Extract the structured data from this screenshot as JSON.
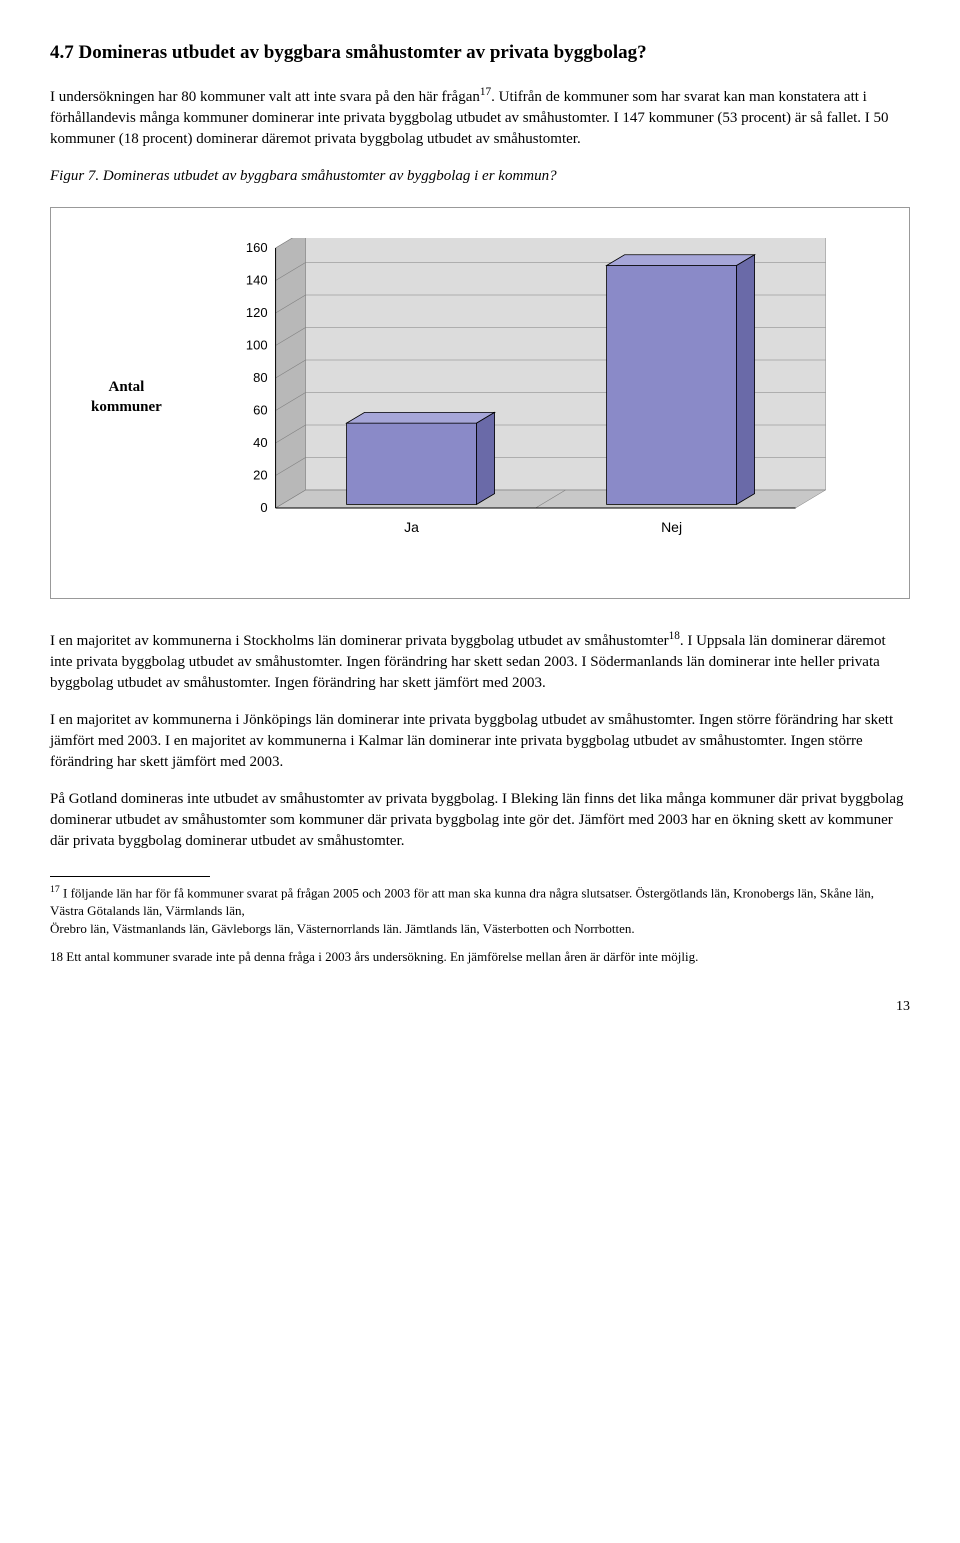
{
  "heading": "4.7 Domineras utbudet av byggbara småhustomter av privata byggbolag?",
  "para1_a": "I undersökningen har 80 kommuner valt att inte svara på den här frågan",
  "para1_sup": "17",
  "para1_b": ". Utifrån de kommuner som har svarat kan man konstatera att i förhållandevis många kommuner dominerar inte privata byggbolag utbudet av småhustomter. I 147 kommuner (53 procent) är så fallet. I 50 kommuner (18 procent) dominerar däremot privata byggbolag utbudet av småhustomter.",
  "figcaption": "Figur 7. Domineras utbudet av byggbara småhustomter av byggbolag i er kommun?",
  "chart": {
    "type": "bar-3d",
    "ylabel_line1": "Antal",
    "ylabel_line2": "kommuner",
    "categories": [
      "Ja",
      "Nej"
    ],
    "values": [
      50,
      147
    ],
    "yticks": [
      0,
      20,
      40,
      60,
      80,
      100,
      120,
      140,
      160
    ],
    "ymax": 160,
    "bar_fill": "#8a8ac8",
    "bar_top": "#a6a6d8",
    "bar_side": "#6a6aa8",
    "floor_fill": "#c8c8c8",
    "backwall_fill": "#dcdcdc",
    "sidewall_fill": "#b8b8b8",
    "grid_color": "#808080",
    "tick_fontsize": 13,
    "label_fontsize": 14
  },
  "para2_a": "I en majoritet av kommunerna i Stockholms län dominerar privata byggbolag utbudet av småhustomter",
  "para2_sup": "18",
  "para2_b": ". I Uppsala län dominerar däremot inte privata byggbolag utbudet av småhustomter. Ingen förändring har skett sedan 2003. I Södermanlands län dominerar inte heller privata byggbolag utbudet av småhustomter. Ingen förändring har skett jämfört med 2003.",
  "para3": "I en majoritet av kommunerna i Jönköpings län dominerar inte privata byggbolag utbudet av småhustomter. Ingen större förändring har skett jämfört med 2003. I en majoritet av kommunerna i Kalmar län dominerar inte privata byggbolag utbudet av småhustomter. Ingen större förändring har skett jämfört med 2003.",
  "para4": "På Gotland domineras inte utbudet av småhustomter av privata byggbolag. I Bleking län finns det lika många kommuner där privat byggbolag dominerar utbudet av småhustomter som kommuner där privata byggbolag inte gör det. Jämfört med 2003 har en ökning skett av kommuner där privata byggbolag dominerar utbudet av småhustomter.",
  "footnote17_sup": "17",
  "footnote17_a": " I följande län har för få kommuner svarat på frågan 2005 och 2003 för att man ska kunna dra några slutsatser. Östergötlands län, Kronobergs län, Skåne län, Västra Götalands län, Värmlands län,",
  "footnote17_b": "Örebro län, Västmanlands län, Gävleborgs län, Västernorrlands län. Jämtlands län, Västerbotten och Norrbotten.",
  "footnote18": "18 Ett antal kommuner svarade inte på denna fråga i 2003 års undersökning. En jämförelse mellan åren är därför inte möjlig.",
  "page_number": "13"
}
